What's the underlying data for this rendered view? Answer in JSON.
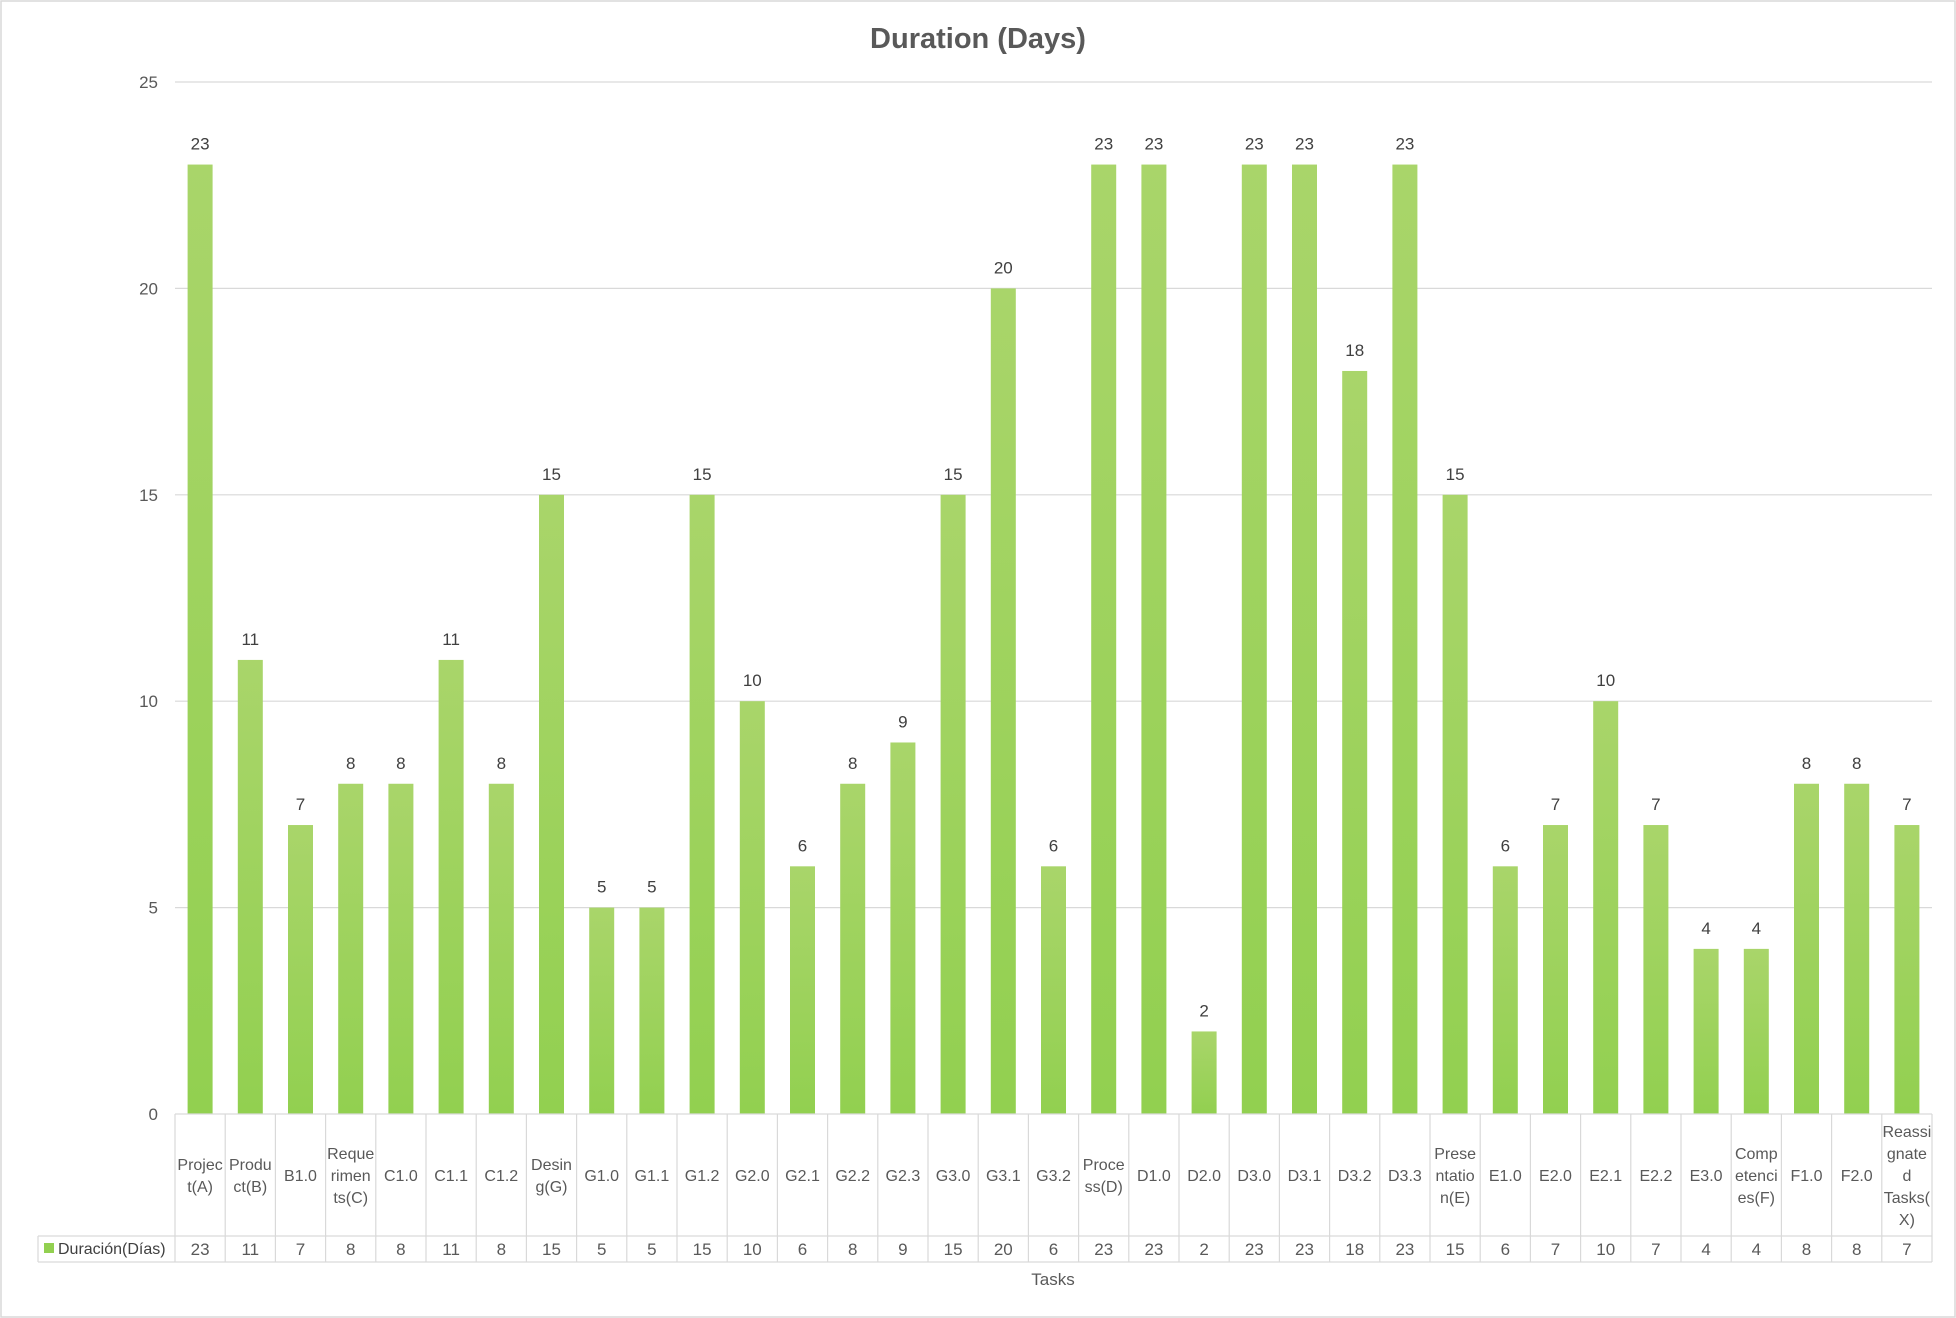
{
  "chart_data": {
    "type": "bar",
    "title": "Duration (Days)",
    "xlabel": "Tasks",
    "ylabel": "",
    "ylim": [
      0,
      25
    ],
    "yticks": [
      0,
      5,
      10,
      15,
      20,
      25
    ],
    "grid": true,
    "legend": "data-table",
    "bar_color": "#92d050",
    "bar_color_light": "#a9d56a",
    "categories": [
      "Project(A)",
      "Product(B)",
      "B1.0",
      "Requeriments(C)",
      "C1.0",
      "C1.1",
      "C1.2",
      "Desing(G)",
      "G1.0",
      "G1.1",
      "G1.2",
      "G2.0",
      "G2.1",
      "G2.2",
      "G2.3",
      "G3.0",
      "G3.1",
      "G3.2",
      "Process(D)",
      "D1.0",
      "D2.0",
      "D3.0",
      "D3.1",
      "D3.2",
      "D3.3",
      "Presentation(E)",
      "E1.0",
      "E2.0",
      "E2.1",
      "E2.2",
      "E3.0",
      "Competencies(F)",
      "F1.0",
      "F2.0",
      "Reassignated Tasks(X)"
    ],
    "category_display_lines": [
      [
        "Projec",
        "t(A)"
      ],
      [
        "Produ",
        "ct(B)"
      ],
      [
        "B1.0"
      ],
      [
        "Reque",
        "rimen",
        "ts(C)"
      ],
      [
        "C1.0"
      ],
      [
        "C1.1"
      ],
      [
        "C1.2"
      ],
      [
        "Desin",
        "g(G)"
      ],
      [
        "G1.0"
      ],
      [
        "G1.1"
      ],
      [
        "G1.2"
      ],
      [
        "G2.0"
      ],
      [
        "G2.1"
      ],
      [
        "G2.2"
      ],
      [
        "G2.3"
      ],
      [
        "G3.0"
      ],
      [
        "G3.1"
      ],
      [
        "G3.2"
      ],
      [
        "Proce",
        "ss(D)"
      ],
      [
        "D1.0"
      ],
      [
        "D2.0"
      ],
      [
        "D3.0"
      ],
      [
        "D3.1"
      ],
      [
        "D3.2"
      ],
      [
        "D3.3"
      ],
      [
        "Prese",
        "ntatio",
        "n(E)"
      ],
      [
        "E1.0"
      ],
      [
        "E2.0"
      ],
      [
        "E2.1"
      ],
      [
        "E2.2"
      ],
      [
        "E3.0"
      ],
      [
        "Comp",
        "etenci",
        "es(F)"
      ],
      [
        "F1.0"
      ],
      [
        "F2.0"
      ],
      [
        "Reassi",
        "gnate",
        "d",
        "Tasks(",
        "X)"
      ]
    ],
    "series": [
      {
        "name": "Duración(Días)",
        "values": [
          23,
          11,
          7,
          8,
          8,
          11,
          8,
          15,
          5,
          5,
          15,
          10,
          6,
          8,
          9,
          15,
          20,
          6,
          23,
          23,
          2,
          23,
          23,
          18,
          23,
          15,
          6,
          7,
          10,
          7,
          4,
          4,
          8,
          8,
          7
        ]
      }
    ]
  }
}
